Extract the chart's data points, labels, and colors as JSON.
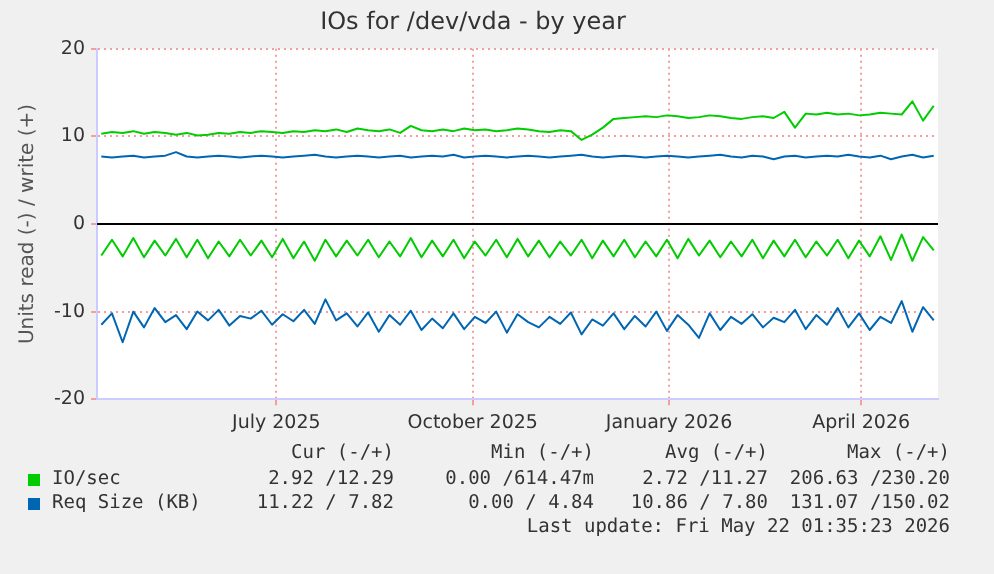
{
  "chart_data": {
    "type": "line",
    "title": "IOs for /dev/vda - by year",
    "ylabel": "Units read (-) / write (+)",
    "x": [
      "2025-04-10",
      "2025-04-15",
      "2025-04-20",
      "2025-04-25",
      "2025-04-30",
      "2025-05-05",
      "2025-05-10",
      "2025-05-15",
      "2025-05-20",
      "2025-05-25",
      "2025-05-30",
      "2025-06-04",
      "2025-06-09",
      "2025-06-14",
      "2025-06-19",
      "2025-06-24",
      "2025-06-29",
      "2025-07-04",
      "2025-07-09",
      "2025-07-14",
      "2025-07-19",
      "2025-07-24",
      "2025-07-29",
      "2025-08-03",
      "2025-08-08",
      "2025-08-13",
      "2025-08-18",
      "2025-08-23",
      "2025-08-28",
      "2025-09-02",
      "2025-09-07",
      "2025-09-12",
      "2025-09-17",
      "2025-09-22",
      "2025-09-27",
      "2025-10-02",
      "2025-10-07",
      "2025-10-12",
      "2025-10-17",
      "2025-10-22",
      "2025-10-27",
      "2025-11-01",
      "2025-11-06",
      "2025-11-11",
      "2025-11-16",
      "2025-11-21",
      "2025-11-26",
      "2025-12-01",
      "2025-12-06",
      "2025-12-11",
      "2025-12-16",
      "2025-12-21",
      "2025-12-26",
      "2025-12-31",
      "2026-01-05",
      "2026-01-10",
      "2026-01-15",
      "2026-01-20",
      "2026-01-25",
      "2026-01-30",
      "2026-02-04",
      "2026-02-09",
      "2026-02-14",
      "2026-02-19",
      "2026-02-24",
      "2026-03-01",
      "2026-03-06",
      "2026-03-11",
      "2026-03-16",
      "2026-03-21",
      "2026-03-26",
      "2026-03-31",
      "2026-04-05",
      "2026-04-10",
      "2026-04-15",
      "2026-04-20",
      "2026-04-25",
      "2026-04-30",
      "2026-05-05"
    ],
    "series": [
      {
        "name": "IO/sec",
        "color": "#00cc00",
        "values": [
          10.3,
          10.5,
          10.4,
          10.6,
          10.3,
          10.5,
          10.4,
          10.2,
          10.4,
          10.1,
          10.2,
          10.4,
          10.3,
          10.5,
          10.4,
          10.6,
          10.5,
          10.4,
          10.6,
          10.5,
          10.7,
          10.6,
          10.8,
          10.5,
          10.9,
          10.7,
          10.6,
          10.8,
          10.4,
          11.2,
          10.7,
          10.6,
          10.8,
          10.6,
          10.9,
          10.7,
          10.8,
          10.6,
          10.7,
          10.9,
          10.8,
          10.6,
          10.5,
          10.7,
          10.6,
          9.6,
          10.2,
          11.0,
          12.0,
          12.1,
          12.2,
          12.3,
          12.2,
          12.4,
          12.3,
          12.1,
          12.2,
          12.4,
          12.3,
          12.1,
          12.0,
          12.2,
          12.3,
          12.1,
          12.8,
          11.0,
          12.6,
          12.5,
          12.7,
          12.5,
          12.6,
          12.4,
          12.5,
          12.7,
          12.6,
          12.5,
          14.0,
          11.8,
          13.5
        ]
      },
      {
        "color": "#0066b3",
        "values": [
          7.7,
          7.6,
          7.7,
          7.8,
          7.6,
          7.7,
          7.8,
          8.2,
          7.7,
          7.6,
          7.7,
          7.8,
          7.7,
          7.6,
          7.7,
          7.8,
          7.7,
          7.6,
          7.7,
          7.8,
          7.9,
          7.7,
          7.6,
          7.7,
          7.8,
          7.7,
          7.6,
          7.7,
          7.8,
          7.6,
          7.7,
          7.8,
          7.7,
          7.9,
          7.6,
          7.7,
          7.8,
          7.7,
          7.6,
          7.7,
          7.8,
          7.7,
          7.6,
          7.7,
          7.8,
          7.9,
          7.7,
          7.6,
          7.7,
          7.8,
          7.7,
          7.6,
          7.7,
          7.8,
          7.7,
          7.6,
          7.7,
          7.8,
          7.9,
          7.7,
          7.6,
          7.8,
          7.7,
          7.4,
          7.7,
          7.8,
          7.6,
          7.7,
          7.8,
          7.7,
          7.9,
          7.7,
          7.6,
          7.8,
          7.4,
          7.7,
          7.9,
          7.6,
          7.8
        ]
      },
      {
        "color": "#00cc00",
        "values": [
          -3.6,
          -1.8,
          -3.7,
          -1.6,
          -3.8,
          -1.9,
          -3.6,
          -1.7,
          -3.8,
          -1.8,
          -3.9,
          -2.0,
          -3.7,
          -1.8,
          -3.6,
          -1.9,
          -3.8,
          -1.7,
          -3.9,
          -2.0,
          -4.2,
          -1.8,
          -3.7,
          -1.9,
          -3.6,
          -1.8,
          -3.8,
          -2.0,
          -3.7,
          -1.6,
          -3.8,
          -1.9,
          -3.7,
          -1.8,
          -3.9,
          -2.0,
          -3.6,
          -1.8,
          -3.8,
          -1.7,
          -3.7,
          -1.9,
          -3.8,
          -2.0,
          -3.6,
          -1.8,
          -3.9,
          -1.9,
          -3.7,
          -1.8,
          -3.8,
          -2.0,
          -3.7,
          -1.8,
          -3.9,
          -1.7,
          -3.6,
          -1.9,
          -3.8,
          -2.0,
          -3.7,
          -1.8,
          -3.9,
          -1.9,
          -3.7,
          -1.8,
          -3.8,
          -2.0,
          -3.6,
          -1.8,
          -3.9,
          -1.9,
          -3.7,
          -1.4,
          -4.1,
          -1.2,
          -4.2,
          -1.5,
          -3.0
        ]
      },
      {
        "name": "Req Size (KB)",
        "color": "#0066b3",
        "values": [
          -11.5,
          -10.2,
          -13.5,
          -10.0,
          -11.8,
          -9.6,
          -11.2,
          -10.4,
          -12.0,
          -10.0,
          -11.0,
          -9.8,
          -11.6,
          -10.5,
          -10.8,
          -9.9,
          -11.5,
          -10.3,
          -11.1,
          -9.8,
          -11.4,
          -8.6,
          -11.0,
          -10.2,
          -11.7,
          -10.1,
          -12.3,
          -10.4,
          -11.5,
          -9.9,
          -12.1,
          -10.8,
          -11.9,
          -10.2,
          -12.0,
          -10.6,
          -11.3,
          -10.0,
          -12.4,
          -10.3,
          -11.2,
          -11.8,
          -10.6,
          -11.4,
          -10.1,
          -12.6,
          -10.9,
          -11.6,
          -10.2,
          -12.0,
          -10.5,
          -11.7,
          -10.0,
          -12.2,
          -10.4,
          -11.5,
          -13.0,
          -10.2,
          -12.1,
          -10.6,
          -11.4,
          -10.3,
          -11.8,
          -10.7,
          -11.2,
          -9.8,
          -12.0,
          -10.4,
          -11.5,
          -9.6,
          -11.8,
          -10.2,
          -12.1,
          -10.6,
          -11.3,
          -8.8,
          -12.3,
          -9.5,
          -11.0
        ]
      }
    ],
    "xlim": [
      "2025-04-08",
      "2026-05-07"
    ],
    "xticks": [
      {
        "value": "2025-07-01",
        "label": "July 2025"
      },
      {
        "value": "2025-10-01",
        "label": "October 2025"
      },
      {
        "value": "2026-01-01",
        "label": "January 2026"
      },
      {
        "value": "2026-04-01",
        "label": "April 2026"
      }
    ],
    "ylim": [
      -20,
      20
    ],
    "yticks": [
      -20,
      -10,
      0,
      10,
      20
    ],
    "ref_lines": [
      {
        "axis": "y",
        "value": 0,
        "color": "#000000"
      }
    ],
    "grid": true,
    "legend": "bottom",
    "marker": "none",
    "line_style": "solid",
    "annotations": [
      "Cur (-/+)",
      "Min (-/+)",
      "Avg (-/+)",
      "Max (-/+)",
      "2.92 /12.29",
      "0.00 /614.47m",
      "2.72 /11.27",
      "206.63 /230.20",
      "11.22 / 7.82",
      "0.00 / 4.84",
      "10.86 / 7.80",
      "131.07 /150.02",
      "Last update: Fri May 22 01:35:23 2026"
    ]
  }
}
